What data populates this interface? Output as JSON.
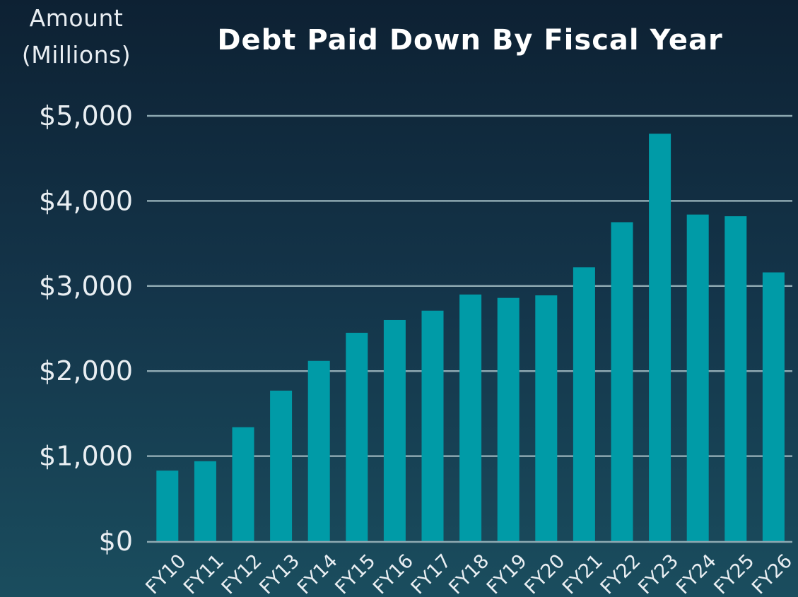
{
  "chart_data": {
    "type": "bar",
    "title": "Debt Paid Down By Fiscal Year",
    "ylabel_lines": [
      "Amount",
      "(Millions)"
    ],
    "xlabel": "",
    "categories": [
      "FY10",
      "FY11",
      "FY12",
      "FY13",
      "FY14",
      "FY15",
      "FY16",
      "FY17",
      "FY18",
      "FY19",
      "FY20",
      "FY21",
      "FY22",
      "FY23",
      "FY24",
      "FY25",
      "FY26"
    ],
    "values": [
      830,
      940,
      1340,
      1770,
      2120,
      2450,
      2600,
      2710,
      2900,
      2860,
      2890,
      3220,
      3750,
      4790,
      3840,
      3820,
      3160
    ],
    "ylim": [
      0,
      5000
    ],
    "yticks": [
      0,
      1000,
      2000,
      3000,
      4000,
      5000
    ],
    "ytick_labels": [
      "$0",
      "$1,000",
      "$2,000",
      "$3,000",
      "$4,000",
      "$5,000"
    ],
    "grid": true,
    "bar_color": "#009ba7",
    "grid_color": "#8ea9b2",
    "text_color": "#e9eef2"
  }
}
